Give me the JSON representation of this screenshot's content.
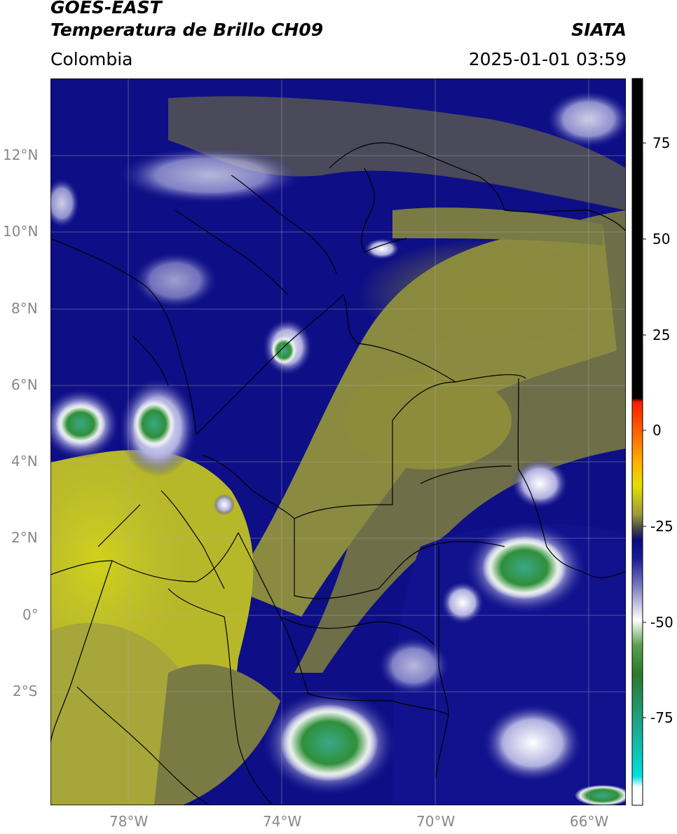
{
  "header": {
    "satellite": "GOES-EAST",
    "product": "Temperatura de Brillo CH09",
    "agency": "SIATA",
    "region": "Colombia",
    "datetime": "2025-01-01 03:59"
  },
  "map": {
    "lon_range": [
      -80,
      -65
    ],
    "lat_range": [
      -5,
      14
    ],
    "lat_ticks": [
      "12°N",
      "10°N",
      "8°N",
      "6°N",
      "4°N",
      "2°N",
      "0°",
      "2°S"
    ],
    "lon_ticks": [
      "78°W",
      "74°W",
      "70°W",
      "66°W"
    ]
  },
  "colorbar": {
    "ticks": [
      "75",
      "50",
      "25",
      "0",
      "-25",
      "-50",
      "-75"
    ],
    "range": [
      -95,
      90
    ],
    "colors": {
      "black": "#000000",
      "red": "#ff1a00",
      "orange": "#ff8c00",
      "yellow": "#e6e000",
      "olive": "#8a8a3a",
      "gray": "#555555",
      "navy": "#0a0a80",
      "white": "#ffffff",
      "green": "#3c8c32",
      "cyan": "#00e0e0"
    }
  }
}
